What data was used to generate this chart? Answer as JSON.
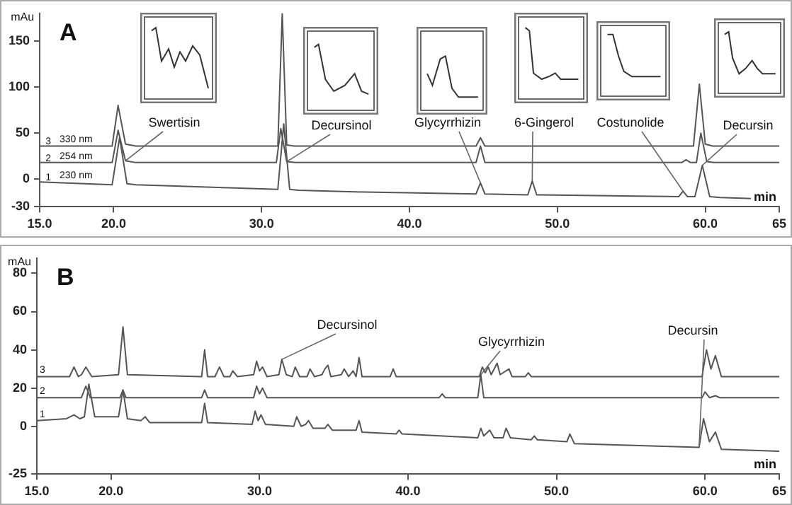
{
  "chart_data": [
    {
      "type": "line",
      "title": "A",
      "xlabel": "min",
      "ylabel": "mAu",
      "xlim": [
        15,
        65
      ],
      "ylim": [
        -30,
        180
      ],
      "xticks": [
        {
          "value": 15,
          "label": "15.0"
        },
        {
          "value": 20,
          "label": "20.0"
        },
        {
          "value": 30,
          "label": "30.0"
        },
        {
          "value": 40,
          "label": "40.0"
        },
        {
          "value": 50,
          "label": "50.0"
        },
        {
          "value": 60,
          "label": "60.0"
        },
        65
      ],
      "yticks": [
        -30,
        0,
        50,
        100,
        150
      ],
      "grid": false,
      "legend": false,
      "series": [
        {
          "name": "330 nm",
          "color": "#555555",
          "x": [
            15,
            19.9,
            20.3,
            20.8,
            21.5,
            31.1,
            31.4,
            31.7,
            32.2,
            44.5,
            44.8,
            45.1,
            59.2,
            59.6,
            60.0,
            60.5,
            65
          ],
          "values": [
            36,
            36,
            80,
            38,
            36,
            36,
            180,
            37,
            36,
            36,
            45,
            36,
            36,
            103,
            38,
            36,
            36
          ]
        },
        {
          "name": "254 nm",
          "color": "#555555",
          "x": [
            15,
            19.9,
            20.3,
            20.8,
            21.5,
            31.0,
            31.3,
            31.7,
            32.3,
            44.5,
            44.8,
            45.1,
            58.4,
            58.7,
            59.0,
            59.4,
            59.7,
            60.1,
            60.6,
            65
          ],
          "values": [
            18,
            18,
            53,
            20,
            18,
            18,
            55,
            19,
            18,
            18,
            36,
            18,
            18,
            21,
            18,
            18,
            50,
            19,
            18,
            18
          ]
        },
        {
          "name": "230 nm",
          "color": "#555555",
          "x": [
            15,
            19.9,
            20.4,
            20.9,
            21.5,
            31.1,
            31.5,
            31.9,
            32.5,
            37,
            44.5,
            44.8,
            45.1,
            48.0,
            48.3,
            48.6,
            58.2,
            58.5,
            58.8,
            59.3,
            59.8,
            60.3,
            61,
            65
          ],
          "values": [
            -3,
            -6,
            45,
            -5,
            -6,
            -11,
            60,
            -11,
            -12,
            -14,
            -16,
            -4,
            -16,
            -17,
            -2,
            -17,
            -19,
            -13,
            -19,
            -19,
            15,
            -19,
            -20,
            -22
          ]
        }
      ],
      "annotations": [
        {
          "text": "Swertisin",
          "x": 20.8,
          "y": 20
        },
        {
          "text": "Decursinol",
          "x": 31.7,
          "y": 19
        },
        {
          "text": "Glycyrrhizin",
          "x": 44.8,
          "y": -4
        },
        {
          "text": "6-Gingerol",
          "x": 48.3,
          "y": -2
        },
        {
          "text": "Costunolide",
          "x": 58.5,
          "y": -13
        },
        {
          "text": "Decursin",
          "x": 59.8,
          "y": 15
        },
        {
          "text": "3",
          "x": 15.3,
          "y": 36
        },
        {
          "text": "2",
          "x": 15.3,
          "y": 18
        },
        {
          "text": "1",
          "x": 15.3,
          "y": -3
        }
      ]
    },
    {
      "type": "line",
      "title": "B",
      "xlabel": "min",
      "ylabel": "mAu",
      "xlim": [
        15,
        65
      ],
      "ylim": [
        -25,
        88
      ],
      "xticks": [
        {
          "value": 15,
          "label": "15.0"
        },
        {
          "value": 20,
          "label": "20.0"
        },
        {
          "value": 30,
          "label": "30.0"
        },
        {
          "value": 40,
          "label": "40.0"
        },
        {
          "value": 50,
          "label": "50.0"
        },
        {
          "value": 60,
          "label": "60.0"
        },
        65
      ],
      "yticks": [
        -25,
        0,
        20,
        40,
        60,
        80
      ],
      "grid": false,
      "legend": false,
      "series": [
        {
          "name": "3",
          "color": "#555555",
          "x": [
            15,
            17.2,
            17.5,
            17.8,
            18.0,
            18.3,
            18.7,
            20.5,
            20.8,
            21.1,
            26.1,
            26.3,
            26.5,
            27.0,
            27.3,
            27.6,
            28.0,
            28.2,
            28.5,
            29.6,
            29.8,
            30.0,
            30.2,
            30.5,
            31.3,
            31.5,
            31.8,
            32.2,
            32.4,
            32.7,
            33.2,
            33.4,
            33.7,
            34.2,
            34.4,
            34.6,
            34.8,
            35.5,
            35.7,
            36.0,
            36.3,
            36.5,
            36.7,
            36.9,
            38.8,
            39.0,
            39.2,
            44.8,
            45.0,
            45.2,
            45.4,
            45.6,
            46.0,
            46.2,
            46.8,
            47.0,
            47.9,
            48.1,
            48.3,
            59.8,
            60.1,
            60.4,
            60.7,
            61.1,
            65
          ],
          "values": [
            26,
            26,
            31,
            26,
            27,
            31,
            26,
            27,
            52,
            27,
            26,
            40,
            26,
            26,
            31,
            26,
            26,
            29,
            26,
            27,
            34,
            29,
            31,
            26,
            27,
            35,
            27,
            26,
            31,
            26,
            26,
            30,
            26,
            27,
            30,
            32,
            26,
            27,
            30,
            26,
            29,
            26,
            36,
            26,
            26,
            30,
            26,
            26,
            31,
            28,
            31,
            27,
            33,
            27,
            30,
            26,
            26,
            28,
            26,
            26,
            40,
            30,
            37,
            26,
            26
          ]
        },
        {
          "name": "2",
          "color": "#555555",
          "x": [
            15,
            18.0,
            18.3,
            18.6,
            20.6,
            20.8,
            21.0,
            26.1,
            26.3,
            26.5,
            29.6,
            29.8,
            30.0,
            30.2,
            30.5,
            42.1,
            42.3,
            42.5,
            44.7,
            44.9,
            45.1,
            59.8,
            60.0,
            60.3,
            60.7,
            61.0,
            65
          ],
          "values": [
            15,
            15,
            21,
            15,
            15,
            19,
            15,
            15,
            19,
            15,
            15,
            21,
            17,
            20,
            15,
            15,
            17,
            15,
            15,
            27,
            15,
            15,
            18,
            15,
            16,
            15,
            15
          ]
        },
        {
          "name": "1",
          "color": "#555555",
          "x": [
            15,
            17.0,
            17.5,
            17.9,
            18.2,
            18.5,
            18.9,
            20.5,
            20.8,
            21.1,
            22.0,
            22.3,
            22.6,
            26.1,
            26.3,
            26.5,
            29.5,
            29.7,
            29.9,
            30.1,
            30.4,
            32.3,
            32.5,
            32.8,
            33.1,
            33.3,
            33.6,
            34.4,
            34.6,
            34.9,
            36.5,
            36.7,
            36.9,
            39.2,
            39.4,
            39.6,
            44.7,
            44.9,
            45.1,
            45.5,
            45.8,
            46.4,
            46.6,
            46.9,
            48.3,
            48.5,
            48.7,
            50.7,
            50.9,
            51.2,
            59.6,
            59.9,
            60.3,
            60.7,
            61.1,
            65
          ],
          "values": [
            3,
            4,
            6,
            4,
            5,
            22,
            5,
            5,
            19,
            4,
            3,
            5,
            2,
            2,
            12,
            2,
            1,
            8,
            3,
            6,
            1,
            0,
            5,
            0,
            1,
            3,
            -1,
            -1,
            1,
            -2,
            -2,
            3,
            -3,
            -4,
            -2,
            -4,
            -6,
            -1,
            -5,
            -2,
            -6,
            -6,
            -1,
            -6,
            -7,
            -5,
            -7,
            -8,
            -4,
            -9,
            -11,
            4,
            -8,
            -3,
            -12,
            -13
          ]
        }
      ],
      "annotations": [
        {
          "text": "Decursinol",
          "x": 31.5,
          "y": 35
        },
        {
          "text": "Glycyrrhizin",
          "x": 44.9,
          "y": 27
        },
        {
          "text": "Decursin",
          "x": 59.6,
          "y": -11
        }
      ]
    }
  ]
}
